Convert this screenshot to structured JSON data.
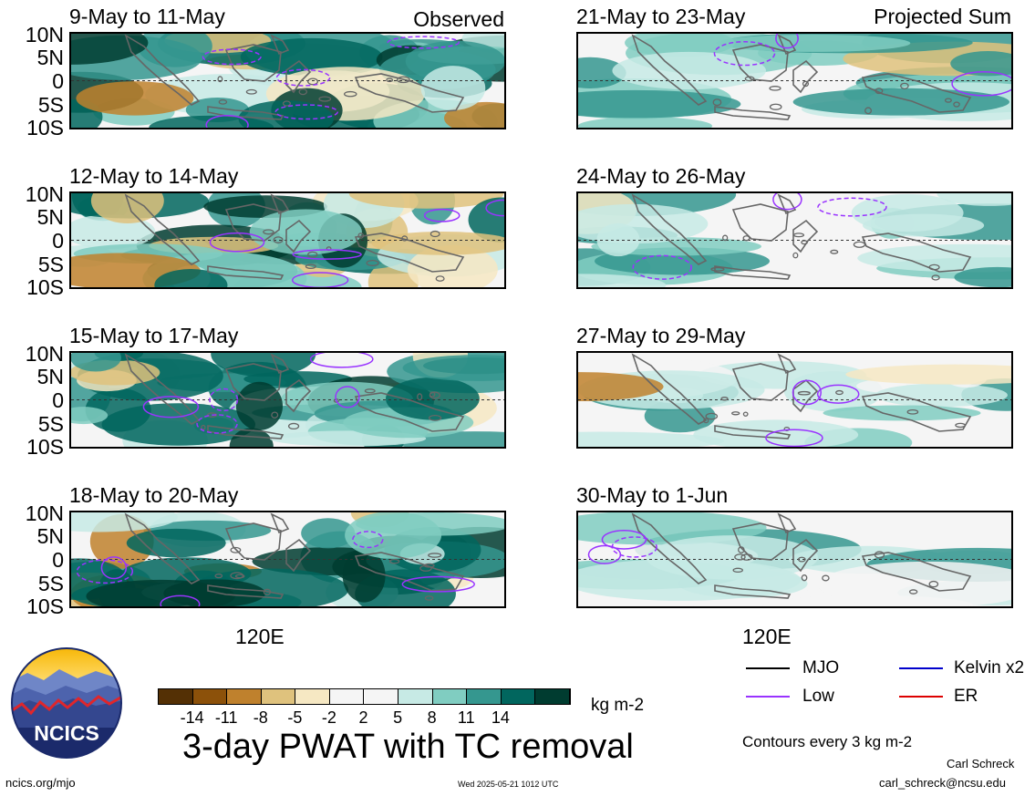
{
  "panels": [
    {
      "title": "9-May to 11-May",
      "tag": "Observed"
    },
    {
      "title": "12-May to 14-May",
      "tag": ""
    },
    {
      "title": "15-May to 17-May",
      "tag": ""
    },
    {
      "title": "18-May to 20-May",
      "tag": ""
    },
    {
      "title": "21-May to 23-May",
      "tag": "Projected Sum"
    },
    {
      "title": "24-May to 26-May",
      "tag": ""
    },
    {
      "title": "27-May to 29-May",
      "tag": ""
    },
    {
      "title": "30-May to 1-Jun",
      "tag": ""
    }
  ],
  "lat_labels": [
    "10N",
    "5N",
    "0",
    "5S",
    "10S"
  ],
  "lon_label": "120E",
  "colorbar": {
    "colors": [
      "#543005",
      "#8c510a",
      "#bf812d",
      "#dfc27d",
      "#f6e8c3",
      "#f5f5f5",
      "#f5f5f5",
      "#c7eae5",
      "#80cdc1",
      "#35978f",
      "#01665e",
      "#003c30"
    ],
    "ticks": [
      "-14",
      "-11",
      "-8",
      "-5",
      "-2",
      "2",
      "5",
      "8",
      "11",
      "14"
    ],
    "units": "kg m-2"
  },
  "legend": [
    {
      "label": "MJO",
      "color": "#000000"
    },
    {
      "label": "Kelvin x2",
      "color": "#0000cc"
    },
    {
      "label": "Low",
      "color": "#9933ff"
    },
    {
      "label": "ER",
      "color": "#dd0000"
    }
  ],
  "contour_note": "Contours every 3 kg m-2",
  "main_title": "3-day PWAT with TC removal",
  "logo_text": "NCICS",
  "footer": {
    "left": "ncics.org/mjo",
    "center": "Wed 2025-05-21 1012 UTC",
    "author": "Carl Schreck",
    "email": "carl_schreck@ncsu.edu"
  }
}
